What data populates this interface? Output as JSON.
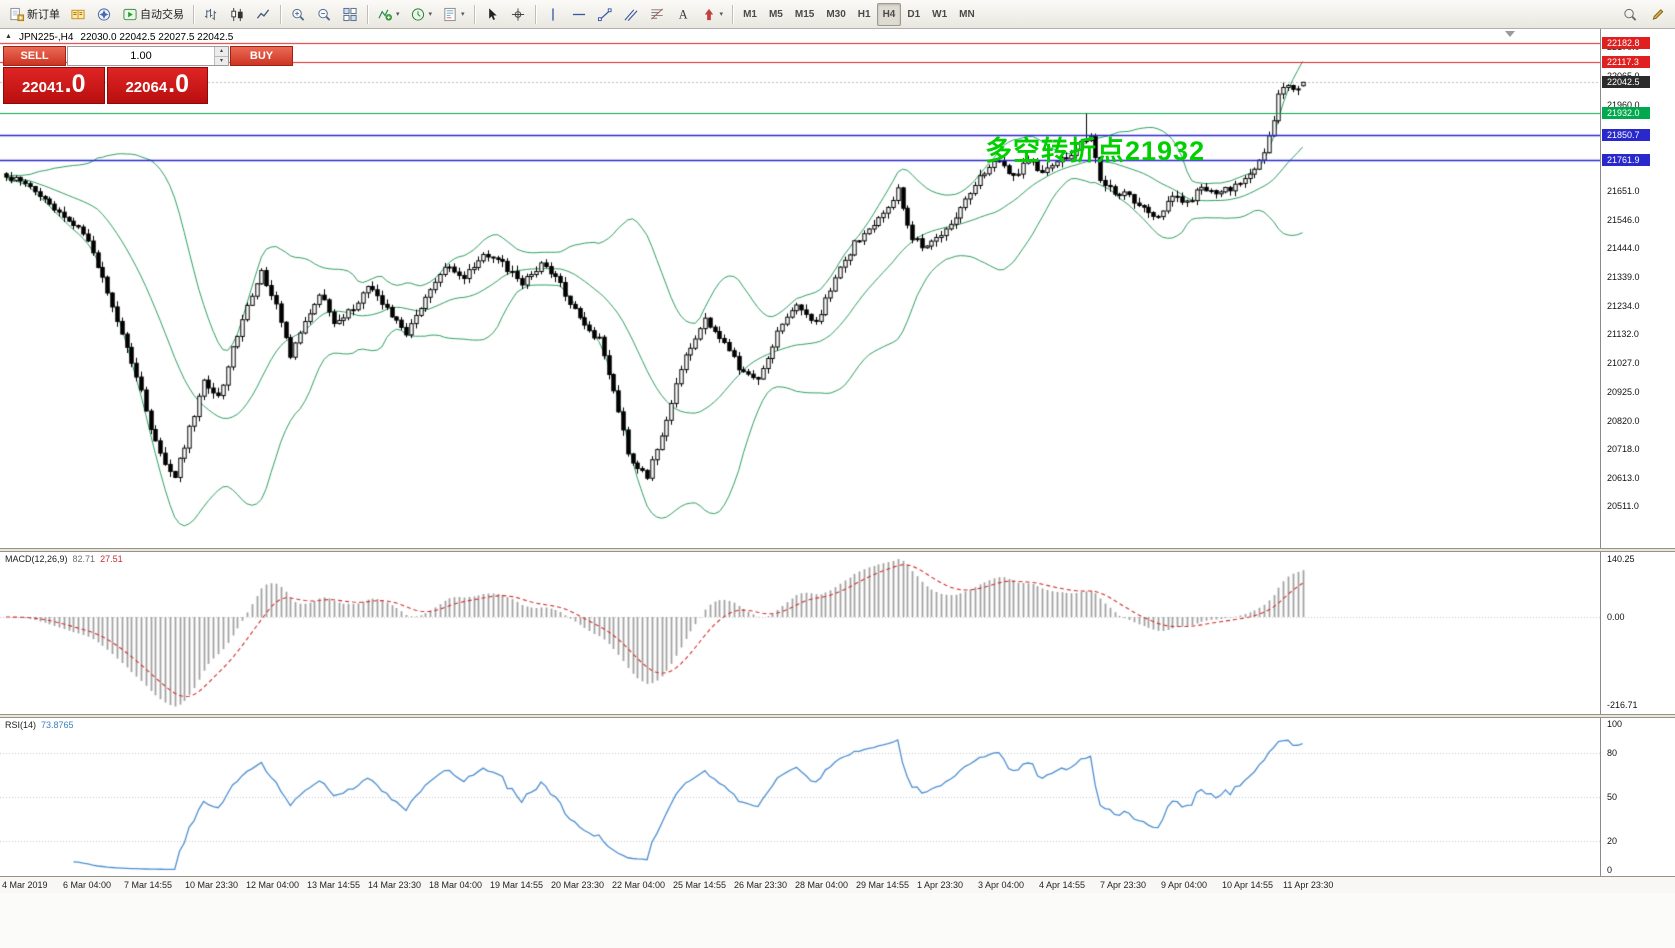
{
  "icons": {
    "caret": "▾",
    "collapse": "▲",
    "spin_up": "▴",
    "spin_down": "▾"
  },
  "toolbar": {
    "groups": [
      [
        {
          "name": "new-order-button",
          "icon": "new-order",
          "label": "新订单"
        },
        {
          "name": "market-watch-button",
          "icon": "market-watch"
        },
        {
          "name": "navigator-button",
          "icon": "navigator"
        },
        {
          "name": "autotrading-button",
          "icon": "autotrading",
          "label": "自动交易"
        }
      ],
      [
        {
          "name": "bar-chart-button",
          "icon": "bars"
        },
        {
          "name": "candlestick-chart-button",
          "icon": "candles"
        },
        {
          "name": "line-chart-button",
          "icon": "line"
        }
      ],
      [
        {
          "name": "zoom-in-button",
          "icon": "zoom-in"
        },
        {
          "name": "zoom-out-button",
          "icon": "zoom-out"
        },
        {
          "name": "tile-windows-button",
          "icon": "tile"
        }
      ],
      [
        {
          "name": "indicators-button",
          "icon": "indicators",
          "caret": true
        },
        {
          "name": "periods-button",
          "icon": "clock",
          "caret": true
        },
        {
          "name": "templates-button",
          "icon": "template",
          "caret": true
        }
      ],
      [
        {
          "name": "cursor-button",
          "icon": "cursor"
        },
        {
          "name": "crosshair-button",
          "icon": "crosshair"
        }
      ],
      [
        {
          "name": "vertical-line-button",
          "icon": "vline"
        },
        {
          "name": "horizontal-line-button",
          "icon": "hline"
        },
        {
          "name": "trendline-button",
          "icon": "trendline"
        },
        {
          "name": "channel-button",
          "icon": "channel"
        },
        {
          "name": "fibonacci-button",
          "icon": "fibo"
        },
        {
          "name": "text-label-button",
          "icon": "text"
        },
        {
          "name": "arrows-button",
          "icon": "arrow",
          "caret": true
        }
      ]
    ],
    "timeframes": [
      {
        "label": "M1"
      },
      {
        "label": "M5"
      },
      {
        "label": "M15"
      },
      {
        "label": "M30"
      },
      {
        "label": "H1"
      },
      {
        "label": "H4",
        "active": true
      },
      {
        "label": "D1"
      },
      {
        "label": "W1"
      },
      {
        "label": "MN"
      }
    ],
    "right": [
      {
        "name": "search-button",
        "icon": "magnifier"
      },
      {
        "name": "quick-edit-button",
        "icon": "pencil"
      }
    ]
  },
  "chart": {
    "symbol_period": "JPN225-,H4",
    "ohlc_text": "22030.0 22042.5 22027.5 22042.5",
    "annotation": {
      "text": "多空转折点21932",
      "color": "#00d000"
    }
  },
  "one_click": {
    "sell_label": "SELL",
    "buy_label": "BUY",
    "volume": "1.00",
    "bid_main": "22041",
    "bid_pips": ".0",
    "ask_main": "22064",
    "ask_pips": ".0"
  },
  "price_axis": {
    "ticks": [
      "22170.0",
      "22065.0",
      "21960.0",
      "21855.0",
      "21750.0",
      "21651.0",
      "21546.0",
      "21444.0",
      "21339.0",
      "21234.0",
      "21132.0",
      "21027.0",
      "20925.0",
      "20820.0",
      "20718.0",
      "20613.0",
      "20511.0"
    ]
  },
  "levels": [
    {
      "label": "22182.8",
      "price": 22182.8,
      "type": "resistance",
      "color": "#e02020"
    },
    {
      "label": "22117.3",
      "price": 22117.3,
      "type": "resistance",
      "color": "#e02020"
    },
    {
      "label": "21932.0",
      "price": 21932.0,
      "type": "pivot",
      "color": "#00a84e"
    },
    {
      "label": "21850.7",
      "price": 21850.7,
      "type": "support",
      "color": "#2828cc"
    },
    {
      "label": "21761.9",
      "price": 21761.9,
      "type": "support",
      "color": "#2828cc"
    }
  ],
  "current_price": {
    "label": "22042.5",
    "value": 22042.5,
    "badge_color": "#2b2b2b"
  },
  "macd": {
    "header": {
      "name": "MACD(12,26,9)",
      "value": "82.71",
      "signal": "27.51"
    },
    "scale_labels": {
      "top": "140.25",
      "zero": "0.00",
      "bottom": "-216.71"
    }
  },
  "rsi": {
    "header": {
      "name": "RSI(14)",
      "value": "73.8765"
    },
    "scale_labels": [
      "100",
      "80",
      "50",
      "20",
      "0"
    ]
  },
  "time_axis": {
    "labels": [
      "4 Mar 2019",
      "6 Mar 04:00",
      "7 Mar 14:55",
      "10 Mar 23:30",
      "12 Mar 04:00",
      "13 Mar 14:55",
      "14 Mar 23:30",
      "18 Mar 04:00",
      "19 Mar 14:55",
      "20 Mar 23:30",
      "22 Mar 04:00",
      "25 Mar 14:55",
      "26 Mar 23:30",
      "28 Mar 04:00",
      "29 Mar 14:55",
      "1 Apr 23:30",
      "3 Apr 04:00",
      "4 Apr 14:55",
      "7 Apr 23:30",
      "9 Apr 04:00",
      "10 Apr 14:55",
      "11 Apr 23:30"
    ]
  },
  "chart_data": {
    "type": "candlestick",
    "symbol": "JPN225-",
    "timeframe": "H4",
    "ohlc_current": {
      "open": 22030.0,
      "high": 22042.5,
      "low": 22027.5,
      "close": 22042.5
    },
    "candle_count": 270,
    "ylim": [
      20360,
      22235
    ],
    "swing_high": {
      "index": 224,
      "price": 21932
    },
    "price_anchors": [
      [
        0,
        21700
      ],
      [
        4,
        21680
      ],
      [
        8,
        21620
      ],
      [
        12,
        21560
      ],
      [
        16,
        21500
      ],
      [
        20,
        21330
      ],
      [
        24,
        21130
      ],
      [
        27,
        20980
      ],
      [
        30,
        20800
      ],
      [
        33,
        20660
      ],
      [
        35,
        20615
      ],
      [
        38,
        20790
      ],
      [
        41,
        20960
      ],
      [
        44,
        20900
      ],
      [
        47,
        21080
      ],
      [
        50,
        21230
      ],
      [
        53,
        21360
      ],
      [
        56,
        21230
      ],
      [
        59,
        21060
      ],
      [
        62,
        21180
      ],
      [
        65,
        21280
      ],
      [
        68,
        21180
      ],
      [
        71,
        21210
      ],
      [
        75,
        21300
      ],
      [
        79,
        21230
      ],
      [
        83,
        21130
      ],
      [
        87,
        21270
      ],
      [
        91,
        21380
      ],
      [
        95,
        21330
      ],
      [
        99,
        21430
      ],
      [
        103,
        21390
      ],
      [
        107,
        21310
      ],
      [
        111,
        21390
      ],
      [
        115,
        21310
      ],
      [
        119,
        21190
      ],
      [
        123,
        21110
      ],
      [
        126,
        20930
      ],
      [
        129,
        20700
      ],
      [
        133,
        20615
      ],
      [
        137,
        20830
      ],
      [
        141,
        21060
      ],
      [
        145,
        21180
      ],
      [
        149,
        21110
      ],
      [
        152,
        21010
      ],
      [
        156,
        20960
      ],
      [
        160,
        21140
      ],
      [
        164,
        21230
      ],
      [
        168,
        21170
      ],
      [
        172,
        21340
      ],
      [
        176,
        21460
      ],
      [
        180,
        21520
      ],
      [
        183,
        21600
      ],
      [
        185,
        21650
      ],
      [
        188,
        21480
      ],
      [
        191,
        21440
      ],
      [
        194,
        21500
      ],
      [
        197,
        21560
      ],
      [
        200,
        21650
      ],
      [
        203,
        21720
      ],
      [
        206,
        21760
      ],
      [
        209,
        21700
      ],
      [
        212,
        21760
      ],
      [
        215,
        21720
      ],
      [
        218,
        21760
      ],
      [
        221,
        21780
      ],
      [
        223,
        21820
      ],
      [
        225,
        21850
      ],
      [
        227,
        21690
      ],
      [
        230,
        21650
      ],
      [
        233,
        21630
      ],
      [
        236,
        21590
      ],
      [
        239,
        21560
      ],
      [
        242,
        21640
      ],
      [
        245,
        21610
      ],
      [
        248,
        21660
      ],
      [
        251,
        21650
      ],
      [
        254,
        21660
      ],
      [
        257,
        21700
      ],
      [
        259,
        21740
      ],
      [
        261,
        21780
      ],
      [
        263,
        21900
      ],
      [
        264,
        22010
      ],
      [
        266,
        22030
      ],
      [
        268,
        22020
      ],
      [
        269,
        22042.5
      ]
    ],
    "indicators": {
      "bollinger": {
        "period": 20,
        "deviation": 2,
        "color": "#2f9e5f"
      },
      "macd": {
        "fast": 12,
        "slow": 26,
        "signal": 9,
        "scale_max": 140.25,
        "scale_min": -216.71,
        "hist_color": "#a2a2a2",
        "signal_color": "#d23030"
      },
      "rsi": {
        "period": 14,
        "color": "#4f8fd0",
        "levels": [
          80,
          50,
          20
        ]
      }
    },
    "candle_colors": {
      "up_fill": "#ffffff",
      "down_fill": "#000000",
      "border": "#000000"
    }
  }
}
